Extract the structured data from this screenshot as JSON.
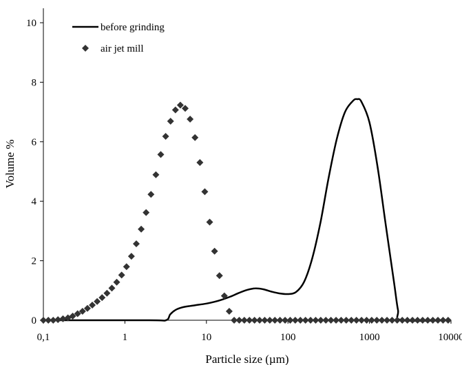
{
  "chart_data": {
    "type": "scatter",
    "xlabel": "Particle size (µm)",
    "ylabel": "Volume %",
    "x_scale": "log",
    "xlim": [
      0.1,
      10000
    ],
    "ylim": [
      0,
      10
    ],
    "x_ticks": [
      {
        "value": 0.1,
        "label": "0,1"
      },
      {
        "value": 1,
        "label": "1"
      },
      {
        "value": 10,
        "label": "10"
      },
      {
        "value": 100,
        "label": "100"
      },
      {
        "value": 1000,
        "label": "1000"
      },
      {
        "value": 10000,
        "label": "10000"
      }
    ],
    "y_ticks": [
      {
        "value": 0,
        "label": "0"
      },
      {
        "value": 2,
        "label": "2"
      },
      {
        "value": 4,
        "label": "4"
      },
      {
        "value": 6,
        "label": "6"
      },
      {
        "value": 8,
        "label": "8"
      },
      {
        "value": 10,
        "label": "10"
      }
    ],
    "grid": false,
    "legend_position": "top-left",
    "series": [
      {
        "name": "before grinding",
        "style": "line",
        "color": "#000000",
        "points": [
          [
            0.1,
            0
          ],
          [
            2.0,
            0
          ],
          [
            3.2,
            0
          ],
          [
            3.6,
            0.2
          ],
          [
            4.2,
            0.35
          ],
          [
            5.0,
            0.43
          ],
          [
            6.3,
            0.48
          ],
          [
            8.0,
            0.52
          ],
          [
            10.0,
            0.56
          ],
          [
            12.6,
            0.62
          ],
          [
            15.8,
            0.7
          ],
          [
            20.0,
            0.8
          ],
          [
            25.1,
            0.92
          ],
          [
            31.6,
            1.02
          ],
          [
            39.8,
            1.07
          ],
          [
            50.1,
            1.04
          ],
          [
            63.1,
            0.96
          ],
          [
            79.4,
            0.9
          ],
          [
            100,
            0.88
          ],
          [
            125.9,
            0.95
          ],
          [
            158.5,
            1.3
          ],
          [
            199.5,
            2.1
          ],
          [
            251.2,
            3.3
          ],
          [
            316.2,
            4.8
          ],
          [
            398.1,
            6.1
          ],
          [
            501.2,
            7.0
          ],
          [
            631,
            7.38
          ],
          [
            708,
            7.43
          ],
          [
            794.3,
            7.35
          ],
          [
            1000,
            6.65
          ],
          [
            1258.9,
            5.15
          ],
          [
            1584.9,
            3.2
          ],
          [
            1995.3,
            1.3
          ],
          [
            2238.7,
            0.35
          ],
          [
            2511.9,
            0
          ],
          [
            10000,
            0
          ]
        ]
      },
      {
        "name": "air jet mill",
        "style": "markers",
        "marker": "diamond",
        "color": "#333333",
        "points": [
          [
            0.1,
            0
          ],
          [
            0.115,
            0
          ],
          [
            0.132,
            0
          ],
          [
            0.151,
            0.02
          ],
          [
            0.174,
            0.05
          ],
          [
            0.2,
            0.08
          ],
          [
            0.229,
            0.14
          ],
          [
            0.263,
            0.22
          ],
          [
            0.302,
            0.3
          ],
          [
            0.347,
            0.4
          ],
          [
            0.398,
            0.51
          ],
          [
            0.457,
            0.63
          ],
          [
            0.525,
            0.76
          ],
          [
            0.603,
            0.91
          ],
          [
            0.692,
            1.08
          ],
          [
            0.794,
            1.28
          ],
          [
            0.912,
            1.52
          ],
          [
            1.047,
            1.8
          ],
          [
            1.202,
            2.15
          ],
          [
            1.38,
            2.57
          ],
          [
            1.585,
            3.06
          ],
          [
            1.82,
            3.62
          ],
          [
            2.089,
            4.23
          ],
          [
            2.399,
            4.89
          ],
          [
            2.754,
            5.57
          ],
          [
            3.162,
            6.18
          ],
          [
            3.631,
            6.69
          ],
          [
            4.169,
            7.07
          ],
          [
            4.786,
            7.23
          ],
          [
            5.495,
            7.12
          ],
          [
            6.31,
            6.76
          ],
          [
            7.244,
            6.14
          ],
          [
            8.318,
            5.3
          ],
          [
            9.55,
            4.32
          ],
          [
            10.965,
            3.3
          ],
          [
            12.589,
            2.32
          ],
          [
            14.454,
            1.5
          ],
          [
            16.596,
            0.82
          ],
          [
            19.055,
            0.3
          ],
          [
            21.878,
            0
          ]
        ]
      }
    ]
  }
}
